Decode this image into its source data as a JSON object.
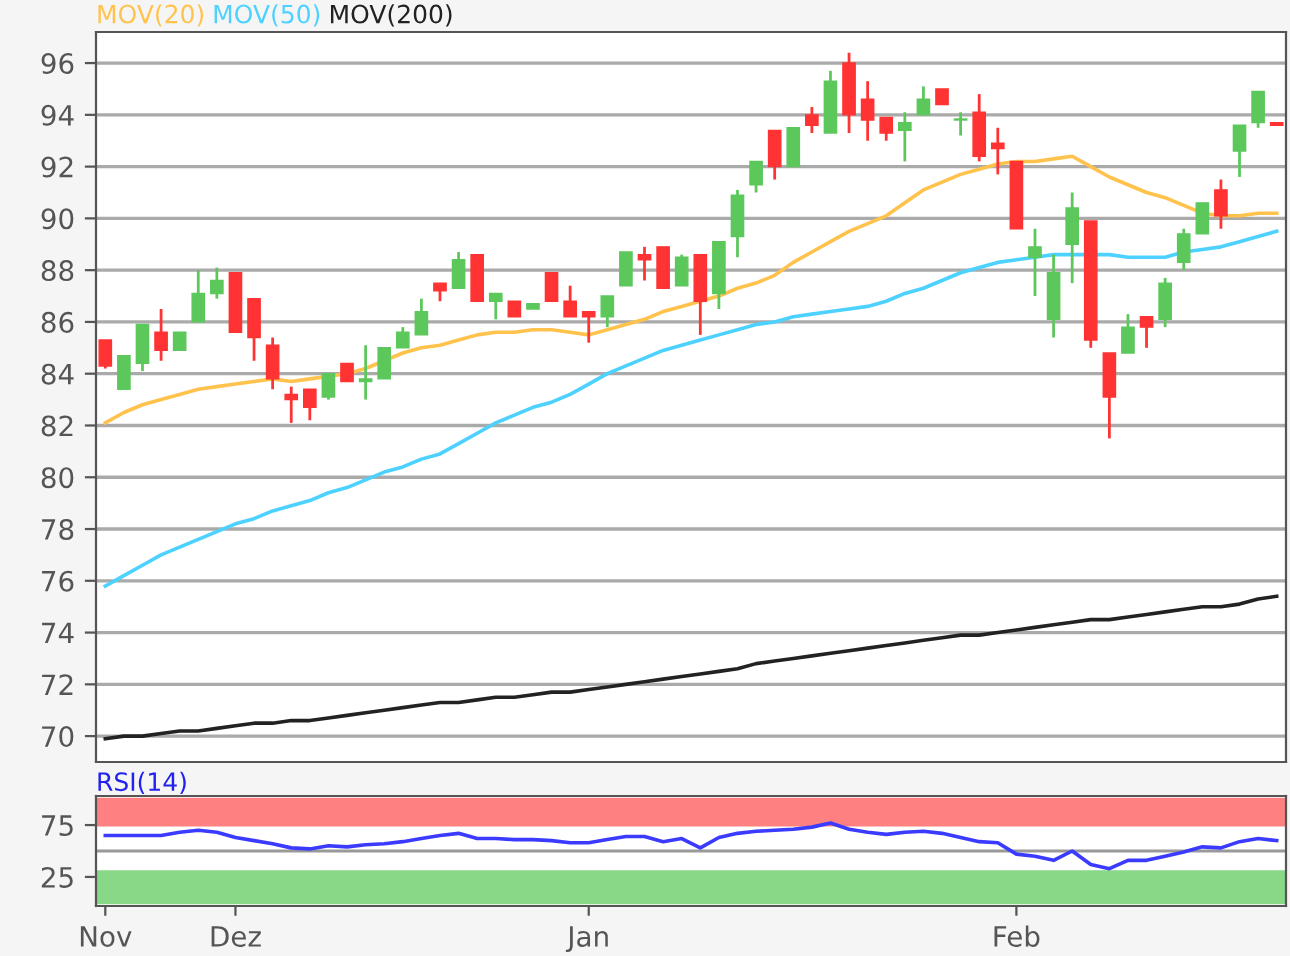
{
  "chart_data": [
    {
      "type": "candlestick",
      "categories": [
        null,
        null,
        null,
        null,
        null,
        null,
        null,
        null,
        null,
        null,
        null,
        null,
        null,
        null,
        null,
        null,
        null,
        null,
        null,
        null,
        null,
        null,
        null,
        null,
        null,
        null,
        null,
        null,
        null,
        null,
        null,
        null,
        null,
        null,
        null,
        null,
        null,
        null,
        null,
        null,
        null,
        null,
        null,
        null,
        null,
        null,
        null,
        null,
        null,
        null,
        null,
        null,
        null,
        null,
        null,
        null,
        null,
        null,
        null,
        null,
        null,
        null,
        null,
        null
      ],
      "ohlc": [
        [
          85.3,
          85.3,
          84.2,
          84.3
        ],
        [
          83.4,
          84.7,
          83.4,
          84.7
        ],
        [
          84.4,
          85.9,
          84.1,
          85.9
        ],
        [
          85.6,
          86.5,
          84.5,
          84.9
        ],
        [
          84.9,
          85.6,
          84.9,
          85.6
        ],
        [
          86.0,
          88.0,
          86.0,
          87.1
        ],
        [
          87.1,
          88.1,
          86.9,
          87.6
        ],
        [
          87.9,
          87.9,
          85.6,
          85.6
        ],
        [
          86.9,
          86.9,
          84.5,
          85.4
        ],
        [
          85.1,
          85.4,
          83.4,
          83.8
        ],
        [
          83.2,
          83.5,
          82.1,
          83.0
        ],
        [
          83.4,
          83.4,
          82.2,
          82.7
        ],
        [
          83.1,
          84.0,
          83.0,
          84.0
        ],
        [
          84.4,
          84.4,
          83.7,
          83.7
        ],
        [
          83.7,
          85.1,
          83.0,
          83.8
        ],
        [
          83.8,
          85.0,
          83.8,
          85.0
        ],
        [
          85.0,
          85.8,
          85.0,
          85.6
        ],
        [
          85.5,
          86.9,
          85.5,
          86.4
        ],
        [
          87.5,
          87.5,
          86.8,
          87.2
        ],
        [
          87.3,
          88.7,
          87.3,
          88.4
        ],
        [
          88.6,
          88.6,
          86.8,
          86.8
        ],
        [
          86.8,
          87.1,
          86.1,
          87.1
        ],
        [
          86.8,
          86.8,
          86.2,
          86.2
        ],
        [
          86.5,
          86.7,
          86.5,
          86.7
        ],
        [
          87.9,
          87.9,
          86.8,
          86.8
        ],
        [
          86.8,
          87.4,
          86.2,
          86.2
        ],
        [
          86.4,
          86.4,
          85.2,
          86.2
        ],
        [
          86.2,
          87.0,
          85.8,
          87.0
        ],
        [
          87.4,
          88.7,
          87.4,
          88.7
        ],
        [
          88.6,
          88.9,
          87.6,
          88.4
        ],
        [
          88.9,
          88.9,
          87.3,
          87.3
        ],
        [
          87.4,
          88.6,
          87.4,
          88.5
        ],
        [
          88.6,
          88.6,
          85.5,
          86.8
        ],
        [
          87.1,
          89.1,
          86.5,
          89.1
        ],
        [
          89.3,
          91.1,
          88.5,
          90.9
        ],
        [
          91.3,
          92.2,
          91.0,
          92.2
        ],
        [
          93.4,
          93.4,
          91.5,
          92.0
        ],
        [
          92.0,
          93.5,
          92.0,
          93.5
        ],
        [
          94.0,
          94.3,
          93.3,
          93.6
        ],
        [
          93.3,
          95.7,
          93.3,
          95.3
        ],
        [
          96.0,
          96.4,
          93.3,
          94.0
        ],
        [
          94.6,
          95.3,
          93.0,
          93.8
        ],
        [
          93.9,
          93.9,
          93.0,
          93.3
        ],
        [
          93.4,
          94.1,
          92.2,
          93.7
        ],
        [
          94.0,
          95.1,
          94.0,
          94.6
        ],
        [
          95.0,
          95.0,
          94.4,
          94.4
        ],
        [
          93.8,
          94.1,
          93.2,
          93.8
        ],
        [
          94.1,
          94.8,
          92.2,
          92.4
        ],
        [
          92.9,
          93.5,
          91.7,
          92.7
        ],
        [
          92.2,
          92.2,
          89.6,
          89.6
        ],
        [
          88.5,
          89.6,
          87.0,
          88.9
        ],
        [
          86.1,
          88.6,
          85.4,
          87.9
        ],
        [
          89.0,
          91.0,
          87.5,
          90.4
        ],
        [
          89.9,
          89.9,
          85.0,
          85.3
        ],
        [
          84.8,
          84.8,
          81.5,
          83.1
        ],
        [
          84.8,
          86.3,
          84.8,
          85.8
        ],
        [
          86.2,
          86.2,
          85.0,
          85.8
        ],
        [
          86.1,
          87.7,
          85.8,
          87.5
        ],
        [
          88.3,
          89.6,
          88.0,
          89.4
        ],
        [
          89.4,
          90.6,
          89.4,
          90.6
        ],
        [
          91.1,
          91.5,
          89.6,
          90.1
        ],
        [
          92.6,
          93.6,
          91.6,
          93.6
        ],
        [
          93.7,
          94.9,
          93.5,
          94.9
        ],
        [
          93.7,
          93.7,
          93.6,
          93.6
        ]
      ],
      "colors": [
        "#ff3333",
        "#5cc85c",
        "#5cc85c",
        "#ff3333",
        "#5cc85c",
        "#5cc85c",
        "#5cc85c",
        "#ff3333",
        "#ff3333",
        "#ff3333",
        "#ff3333",
        "#ff3333",
        "#5cc85c",
        "#ff3333",
        "#5cc85c",
        "#5cc85c",
        "#5cc85c",
        "#5cc85c",
        "#ff3333",
        "#5cc85c",
        "#ff3333",
        "#5cc85c",
        "#ff3333",
        "#5cc85c",
        "#ff3333",
        "#ff3333",
        "#ff3333",
        "#5cc85c",
        "#5cc85c",
        "#ff3333",
        "#ff3333",
        "#5cc85c",
        "#ff3333",
        "#5cc85c",
        "#5cc85c",
        "#5cc85c",
        "#ff3333",
        "#5cc85c",
        "#ff3333",
        "#5cc85c",
        "#ff3333",
        "#ff3333",
        "#ff3333",
        "#5cc85c",
        "#5cc85c",
        "#ff3333",
        "#5cc85c",
        "#ff3333",
        "#ff3333",
        "#ff3333",
        "#5cc85c",
        "#5cc85c",
        "#5cc85c",
        "#ff3333",
        "#ff3333",
        "#5cc85c",
        "#ff3333",
        "#5cc85c",
        "#5cc85c",
        "#5cc85c",
        "#ff3333",
        "#5cc85c",
        "#5cc85c",
        "#ff3333"
      ],
      "series": [
        {
          "name": "MOV(20)",
          "type": "line",
          "color": "#ffc34d",
          "values": [
            82.1,
            82.5,
            82.8,
            83.0,
            83.2,
            83.4,
            83.5,
            83.6,
            83.7,
            83.8,
            83.7,
            83.8,
            83.9,
            84.0,
            84.2,
            84.5,
            84.8,
            85.0,
            85.1,
            85.3,
            85.5,
            85.6,
            85.6,
            85.7,
            85.7,
            85.6,
            85.5,
            85.7,
            85.9,
            86.1,
            86.4,
            86.6,
            86.8,
            87.0,
            87.3,
            87.5,
            87.8,
            88.3,
            88.7,
            89.1,
            89.5,
            89.8,
            90.1,
            90.6,
            91.1,
            91.4,
            91.7,
            91.9,
            92.1,
            92.2,
            92.2,
            92.3,
            92.4,
            92.0,
            91.6,
            91.3,
            91.0,
            90.8,
            90.5,
            90.2,
            90.1,
            90.1,
            90.2,
            90.2
          ]
        },
        {
          "name": "MOV(50)",
          "type": "line",
          "color": "#4dd2ff",
          "values": [
            75.8,
            76.2,
            76.6,
            77.0,
            77.3,
            77.6,
            77.9,
            78.2,
            78.4,
            78.7,
            78.9,
            79.1,
            79.4,
            79.6,
            79.9,
            80.2,
            80.4,
            80.7,
            80.9,
            81.3,
            81.7,
            82.1,
            82.4,
            82.7,
            82.9,
            83.2,
            83.6,
            84.0,
            84.3,
            84.6,
            84.9,
            85.1,
            85.3,
            85.5,
            85.7,
            85.9,
            86.0,
            86.2,
            86.3,
            86.4,
            86.5,
            86.6,
            86.8,
            87.1,
            87.3,
            87.6,
            87.9,
            88.1,
            88.3,
            88.4,
            88.5,
            88.6,
            88.6,
            88.6,
            88.6,
            88.5,
            88.5,
            88.5,
            88.7,
            88.8,
            88.9,
            89.1,
            89.3,
            89.5
          ]
        },
        {
          "name": "MOV(200)",
          "type": "line",
          "color": "#222222",
          "values": [
            69.9,
            70.0,
            70.0,
            70.1,
            70.2,
            70.2,
            70.3,
            70.4,
            70.5,
            70.5,
            70.6,
            70.6,
            70.7,
            70.8,
            70.9,
            71.0,
            71.1,
            71.2,
            71.3,
            71.3,
            71.4,
            71.5,
            71.5,
            71.6,
            71.7,
            71.7,
            71.8,
            71.9,
            72.0,
            72.1,
            72.2,
            72.3,
            72.4,
            72.5,
            72.6,
            72.8,
            72.9,
            73.0,
            73.1,
            73.2,
            73.3,
            73.4,
            73.5,
            73.6,
            73.7,
            73.8,
            73.9,
            73.9,
            74.0,
            74.1,
            74.2,
            74.3,
            74.4,
            74.5,
            74.5,
            74.6,
            74.7,
            74.8,
            74.9,
            75.0,
            75.0,
            75.1,
            75.3,
            75.4
          ]
        }
      ],
      "ylim": [
        69,
        97.2
      ],
      "yticks": [
        70,
        72,
        74,
        76,
        78,
        80,
        82,
        84,
        86,
        88,
        90,
        92,
        94,
        96
      ],
      "grid": "y",
      "tick_labels": "y",
      "legend": "top left"
    },
    {
      "type": "line",
      "title": "RSI(14)",
      "categories": [
        "Nov",
        null,
        null,
        null,
        null,
        null,
        null,
        "Dez",
        null,
        null,
        null,
        null,
        null,
        null,
        null,
        null,
        null,
        null,
        null,
        null,
        null,
        null,
        null,
        null,
        null,
        null,
        "Jan",
        null,
        null,
        null,
        null,
        null,
        null,
        null,
        null,
        null,
        null,
        null,
        null,
        null,
        null,
        null,
        null,
        null,
        null,
        null,
        null,
        null,
        null,
        "Feb",
        null,
        null,
        null,
        null,
        null,
        null,
        null,
        null,
        null,
        null,
        null,
        null,
        null,
        null
      ],
      "series": [
        {
          "color": "#3b3bff",
          "values": [
            65,
            65,
            65,
            65,
            68,
            70,
            68,
            63,
            60,
            57,
            53,
            52,
            55,
            54,
            56,
            57,
            59,
            62,
            65,
            67,
            62,
            62,
            61,
            61,
            60,
            58,
            58,
            61,
            64,
            64,
            59,
            62,
            53,
            63,
            67,
            69,
            70,
            71,
            73,
            77,
            71,
            68,
            66,
            68,
            69,
            67,
            63,
            59,
            58,
            47,
            45,
            41,
            50,
            37,
            33,
            41,
            41,
            45,
            49,
            54,
            53,
            59,
            62,
            60
          ]
        }
      ],
      "ylim": [
        -3,
        103
      ],
      "yticks": [
        25,
        75
      ],
      "bands": [
        {
          "axis": "y",
          "from": 75,
          "to": 100,
          "color": "#ff8080"
        },
        {
          "axis": "y",
          "from": 0,
          "to": 30,
          "color": "#88d888"
        }
      ],
      "ref_lines": [
        {
          "axis": "y",
          "value": 50,
          "color": "#999999"
        }
      ]
    }
  ]
}
